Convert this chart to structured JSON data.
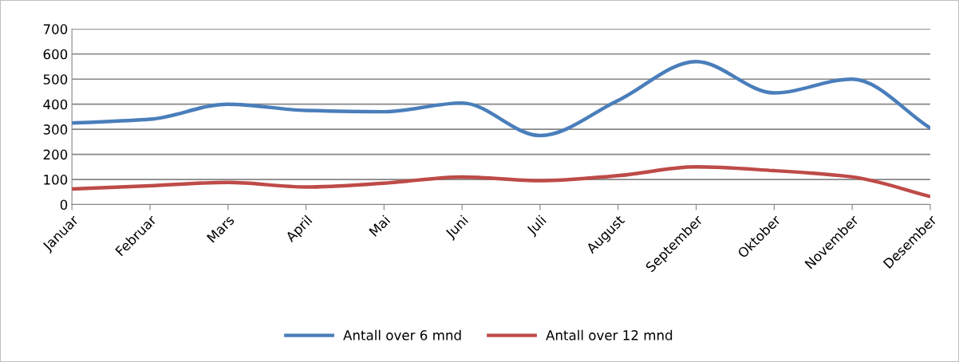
{
  "chart_data": {
    "type": "line",
    "categories": [
      "Januar",
      "Februar",
      "Mars",
      "April",
      "Mai",
      "Juni",
      "Juli",
      "August",
      "September",
      "Oktober",
      "November",
      "Desember"
    ],
    "series": [
      {
        "name": "Antall over 6 mnd",
        "color": "#4a7ebb",
        "values": [
          325,
          340,
          400,
          375,
          370,
          405,
          275,
          415,
          570,
          445,
          500,
          305
        ]
      },
      {
        "name": "Antall over 12 mnd",
        "color": "#be4b48",
        "values": [
          62,
          75,
          88,
          70,
          85,
          110,
          95,
          115,
          150,
          135,
          110,
          32
        ]
      }
    ],
    "ylim": [
      0,
      700
    ],
    "yticks": [
      0,
      100,
      200,
      300,
      400,
      500,
      600,
      700
    ],
    "grid": "y",
    "legend": "bottom",
    "marker": "none",
    "line_style": "solid"
  }
}
